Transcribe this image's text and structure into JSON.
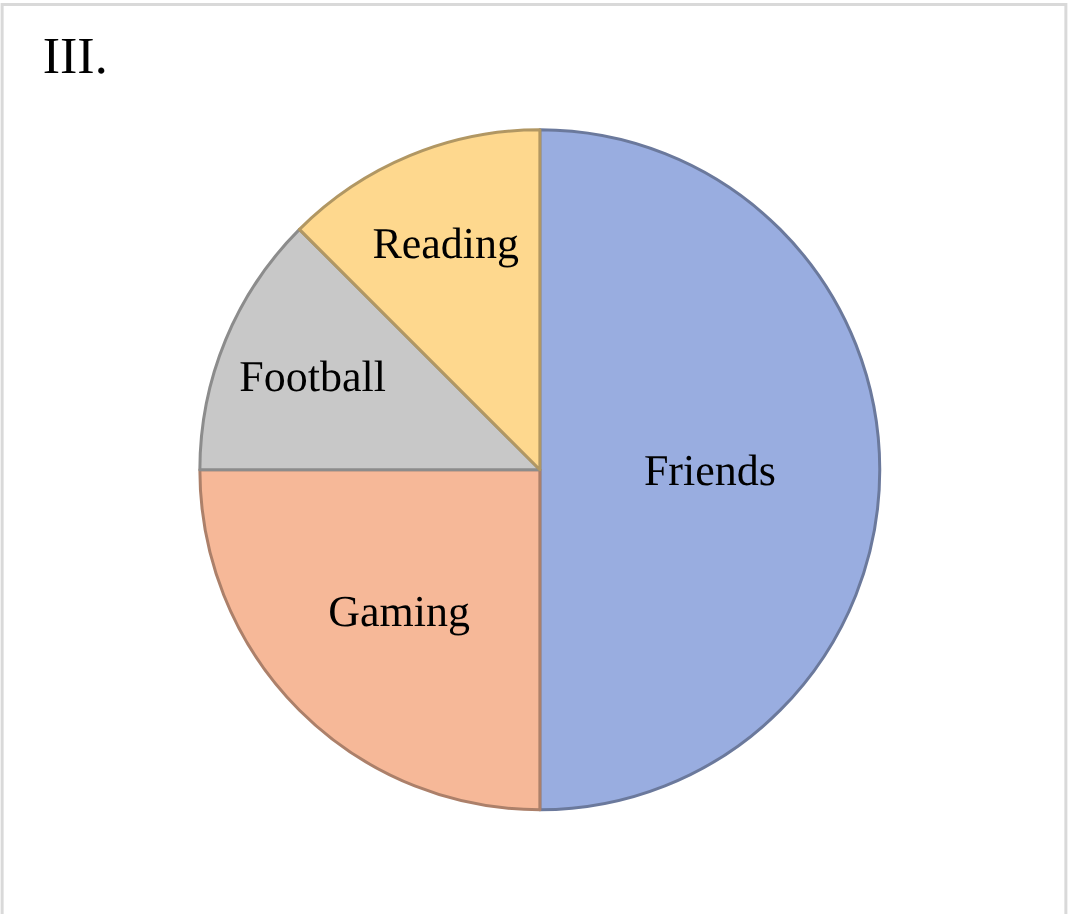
{
  "chart_data": {
    "type": "pie",
    "title": "III.",
    "categories": [
      "Friends",
      "Gaming",
      "Football",
      "Reading"
    ],
    "values": [
      50,
      25,
      12.5,
      12.5
    ],
    "colors": [
      "#99ade0",
      "#f6b898",
      "#c8c8c8",
      "#fed88e"
    ],
    "legend": false
  }
}
